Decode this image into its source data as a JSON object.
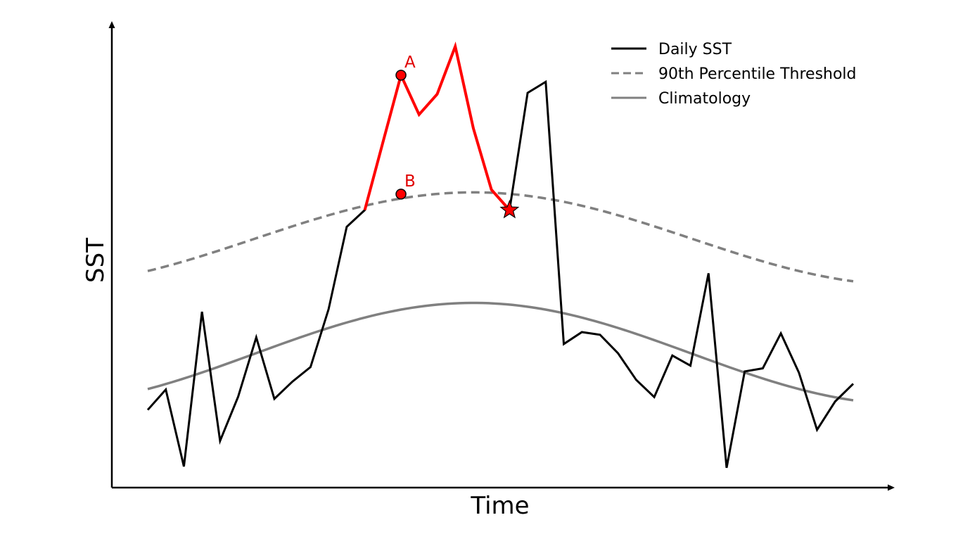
{
  "chart_data": {
    "type": "line",
    "title": "",
    "xlabel": "Time",
    "ylabel": "SST",
    "xlim": [
      -2,
      41
    ],
    "ylim": [
      0,
      10
    ],
    "series": [
      {
        "name": "Daily SST",
        "color": "#000000",
        "style": "solid",
        "x": [
          0,
          1,
          2,
          3,
          4,
          5,
          6,
          7,
          8,
          9,
          10,
          11,
          12,
          13,
          14,
          15,
          16,
          17,
          18,
          19,
          20,
          21,
          22,
          23,
          24,
          25,
          26,
          27,
          28,
          29,
          30,
          31,
          32,
          33,
          34,
          35,
          36,
          37,
          38,
          39
        ],
        "values": [
          1.78,
          2.24,
          0.5,
          4.0,
          1.08,
          2.08,
          3.42,
          2.03,
          2.42,
          2.75,
          4.06,
          5.92,
          6.3,
          7.83,
          9.35,
          8.46,
          8.92,
          10.0,
          8.15,
          6.76,
          6.3,
          8.95,
          9.2,
          3.27,
          3.54,
          3.48,
          3.06,
          2.46,
          2.07,
          3.01,
          2.78,
          4.87,
          0.47,
          2.65,
          2.72,
          3.51,
          2.62,
          1.33,
          1.97,
          2.37
        ]
      },
      {
        "name": "90th Percentile Threshold",
        "color": "#808080",
        "style": "dashed",
        "x": [
          0,
          39
        ],
        "function": "cosine",
        "min": 4.6,
        "max": 6.7,
        "peak_x": 18
      },
      {
        "name": "Climatology",
        "color": "#808080",
        "style": "solid",
        "x": [
          0,
          39
        ],
        "function": "cosine",
        "min": 1.9,
        "max": 4.2,
        "peak_x": 18
      }
    ],
    "highlight": {
      "color": "#ff0000",
      "x_start": 12,
      "x_end": 20,
      "x": [
        12,
        13,
        14,
        15,
        16,
        17,
        18,
        19,
        20
      ],
      "values": [
        6.3,
        7.83,
        9.35,
        8.46,
        8.92,
        10.0,
        8.15,
        6.76,
        6.3
      ]
    },
    "annotations": [
      {
        "label": "A",
        "marker": "circle",
        "x": 14,
        "y": 9.35
      },
      {
        "label": "B",
        "marker": "circle",
        "x": 14,
        "y": 6.66
      },
      {
        "label": "",
        "marker": "star",
        "x": 20,
        "y": 6.3
      }
    ],
    "legend": {
      "position": "top-right",
      "entries": [
        "Daily SST",
        "90th Percentile Threshold",
        "Climatology"
      ]
    },
    "ticks": false,
    "grid": false
  }
}
